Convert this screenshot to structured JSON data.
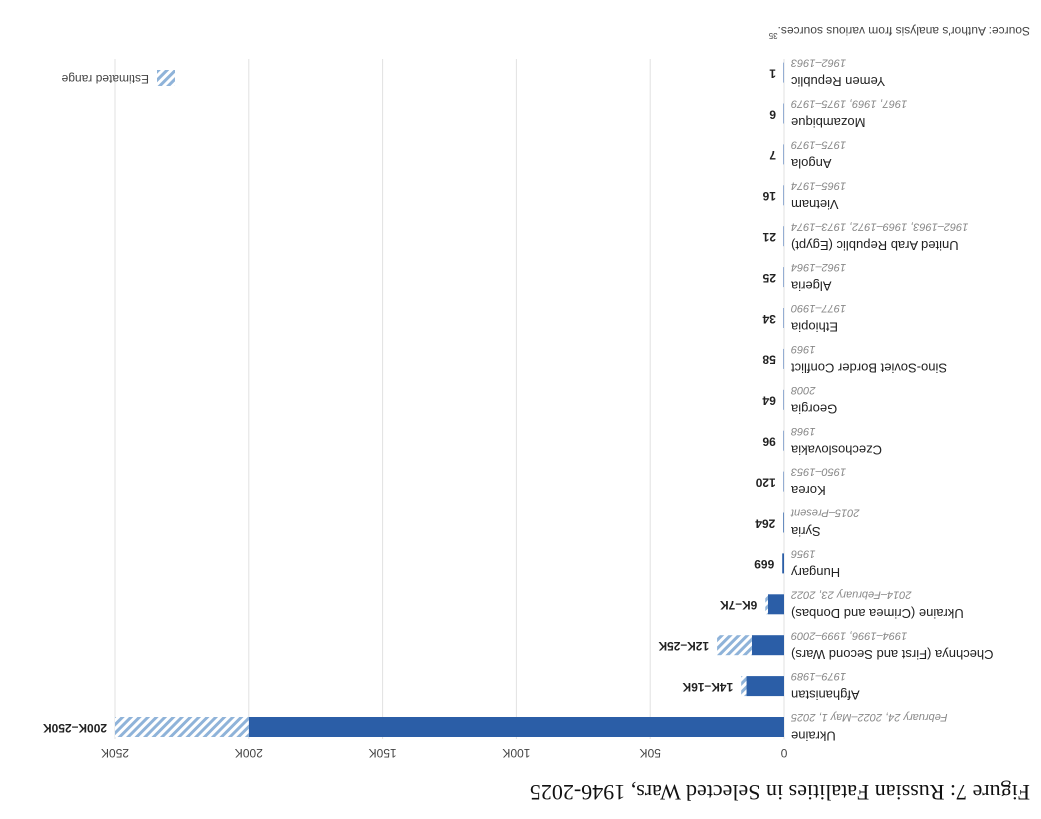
{
  "chart_data": {
    "type": "bar",
    "title": "Figure 7: Russian Fatalities in Selected Wars, 1946-2025",
    "categories": [
      "Ukraine",
      "Afghanistan",
      "Chechnya (First and Second Wars)",
      "Ukraine (Crimea and Donbas)",
      "Hungary",
      "Syria",
      "Korea",
      "Czechoslovakia",
      "Georgia",
      "Sino-Soviet Border Conflict",
      "Ethiopia",
      "Algeria",
      "United Arab Republic (Egypt)",
      "Vietnam",
      "Angola",
      "Mozambique",
      "Yemen Republic"
    ],
    "dates": [
      "February 24, 2022–May 1, 2025",
      "1979–1989",
      "1994–1996, 1999–2009",
      "2014–February 23, 2022",
      "1956",
      "2015–Present",
      "1950–1953",
      "1968",
      "2008",
      "1969",
      "1977–1990",
      "1962–1964",
      "1962–1963, 1969–1972, 1973–1974",
      "1965–1974",
      "1975–1979",
      "1967, 1969, 1975–1979",
      "1962–1963"
    ],
    "values": [
      200000,
      14000,
      12000,
      6000,
      669,
      264,
      120,
      96,
      64,
      58,
      34,
      25,
      21,
      16,
      7,
      6,
      1
    ],
    "range_high": [
      250000,
      16000,
      25000,
      7000,
      null,
      null,
      null,
      null,
      null,
      null,
      null,
      null,
      null,
      null,
      null,
      null,
      null
    ],
    "value_labels": [
      "200K–250K",
      "14K–16K",
      "12K–25K",
      "6K–7K",
      null,
      null,
      null,
      null,
      null,
      null,
      null,
      null,
      null,
      null,
      null,
      null,
      null
    ],
    "color": "#2b5ea7",
    "range_color": "#8fb3d9",
    "legend": {
      "label": "Estimated range"
    },
    "xlim": [
      0,
      250000
    ],
    "xticks": [
      0,
      {
        "value": 50000,
        "label": "50K"
      },
      {
        "value": 100000,
        "label": "100K"
      },
      {
        "value": 150000,
        "label": "150K"
      },
      {
        "value": 200000,
        "label": "200K"
      },
      {
        "value": 250000,
        "label": "250K"
      }
    ],
    "grid": true,
    "source": "Source: Author's analysis from various sources.",
    "source_note": "35"
  }
}
